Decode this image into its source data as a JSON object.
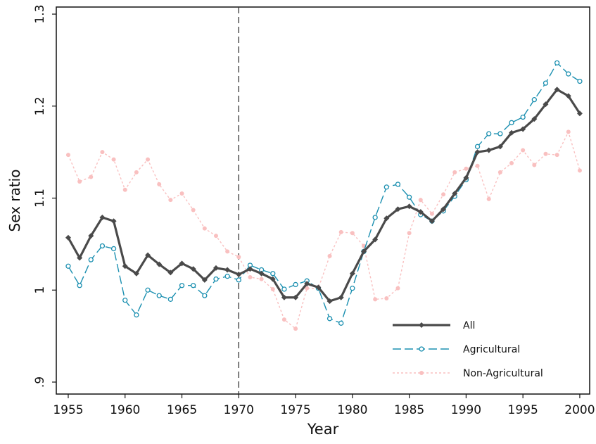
{
  "chart_data": {
    "type": "line",
    "x_label": "Year",
    "y_label": "Sex ratio",
    "x": [
      1955,
      1956,
      1957,
      1958,
      1959,
      1960,
      1961,
      1962,
      1963,
      1964,
      1965,
      1966,
      1967,
      1968,
      1969,
      1970,
      1971,
      1972,
      1973,
      1974,
      1975,
      1976,
      1977,
      1978,
      1979,
      1980,
      1981,
      1982,
      1983,
      1984,
      1985,
      1986,
      1987,
      1988,
      1989,
      1990,
      1991,
      1992,
      1993,
      1994,
      1995,
      1996,
      1997,
      1998,
      1999,
      2000
    ],
    "series": [
      {
        "name": "All",
        "color": "#4a4a4a",
        "style": "solid",
        "marker": "diamond",
        "values": [
          1.057,
          1.035,
          1.059,
          1.079,
          1.075,
          1.026,
          1.018,
          1.038,
          1.028,
          1.019,
          1.029,
          1.023,
          1.011,
          1.024,
          1.022,
          1.017,
          1.023,
          1.018,
          1.012,
          0.992,
          0.992,
          1.007,
          1.003,
          0.988,
          0.992,
          1.018,
          1.042,
          1.055,
          1.078,
          1.088,
          1.091,
          1.085,
          1.075,
          1.088,
          1.105,
          1.122,
          1.15,
          1.152,
          1.156,
          1.171,
          1.175,
          1.186,
          1.202,
          1.218,
          1.211,
          1.192
        ]
      },
      {
        "name": "Agricultural",
        "color": "#1a8fb0",
        "style": "dashed",
        "marker": "circle-open",
        "values": [
          1.026,
          1.005,
          1.033,
          1.048,
          1.045,
          0.989,
          0.973,
          1.0,
          0.994,
          0.99,
          1.005,
          1.005,
          0.994,
          1.012,
          1.015,
          1.011,
          1.027,
          1.022,
          1.018,
          1.001,
          1.006,
          1.01,
          1.002,
          0.969,
          0.964,
          1.002,
          1.042,
          1.079,
          1.112,
          1.115,
          1.101,
          1.082,
          1.075,
          1.086,
          1.102,
          1.12,
          1.156,
          1.17,
          1.17,
          1.182,
          1.188,
          1.207,
          1.225,
          1.247,
          1.235,
          1.227
        ]
      },
      {
        "name": "Non-Agricultural",
        "color": "#f9c0c0",
        "style": "dotted",
        "marker": "circle",
        "values": [
          1.147,
          1.118,
          1.123,
          1.15,
          1.142,
          1.109,
          1.128,
          1.142,
          1.115,
          1.098,
          1.105,
          1.087,
          1.067,
          1.059,
          1.042,
          1.036,
          1.014,
          1.012,
          1.001,
          0.968,
          0.958,
          1.002,
          1.002,
          1.037,
          1.063,
          1.062,
          1.048,
          0.99,
          0.991,
          1.002,
          1.062,
          1.098,
          1.083,
          1.104,
          1.128,
          1.132,
          1.135,
          1.099,
          1.128,
          1.138,
          1.152,
          1.136,
          1.148,
          1.147,
          1.172,
          1.13
        ]
      }
    ],
    "xlim": [
      1953.95,
      2000.87
    ],
    "xticks": [
      1955,
      1960,
      1965,
      1970,
      1975,
      1980,
      1985,
      1990,
      1995,
      2000
    ],
    "ylim": [
      0.887,
      1.3077
    ],
    "yticks": [
      {
        "value": 0.9,
        "label": ".9"
      },
      1,
      1.1,
      1.2,
      1.3
    ],
    "vline": 1970,
    "legend": "lower right"
  }
}
